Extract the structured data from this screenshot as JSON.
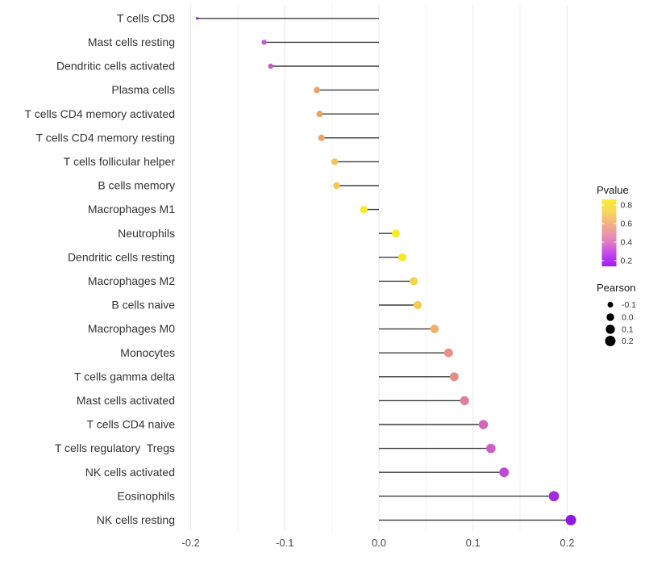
{
  "chart_data": {
    "type": "lollipop",
    "orientation": "horizontal",
    "title": "",
    "xlabel": "",
    "ylabel": "",
    "x_axis": {
      "tick_values": [
        -0.2,
        -0.1,
        0.0,
        0.1,
        0.2
      ],
      "tick_labels": [
        "-0.2",
        "-0.1",
        "0.0",
        "0.1",
        "0.2"
      ],
      "minor_step": 0.05,
      "range": [
        -0.213,
        0.224
      ],
      "grid": true
    },
    "rows": [
      {
        "label": "T cells CD8",
        "pearson": -0.193,
        "pvalue_approx": 0.05,
        "color": "#7c27c8"
      },
      {
        "label": "Mast cells resting",
        "pearson": -0.122,
        "pvalue_approx": 0.33,
        "color": "#c75bc8"
      },
      {
        "label": "Dendritic cells activated",
        "pearson": -0.115,
        "pvalue_approx": 0.34,
        "color": "#c659c2"
      },
      {
        "label": "Plasma cells",
        "pearson": -0.066,
        "pvalue_approx": 0.62,
        "color": "#eda364"
      },
      {
        "label": "T cells CD4 memory activated",
        "pearson": -0.063,
        "pvalue_approx": 0.62,
        "color": "#eda364"
      },
      {
        "label": "T cells CD4 memory resting",
        "pearson": -0.061,
        "pvalue_approx": 0.61,
        "color": "#eca268"
      },
      {
        "label": "T cells follicular helper",
        "pearson": -0.047,
        "pvalue_approx": 0.72,
        "color": "#f3c64f"
      },
      {
        "label": "B cells memory",
        "pearson": -0.045,
        "pvalue_approx": 0.73,
        "color": "#f4c84d"
      },
      {
        "label": "Macrophages M1",
        "pearson": -0.016,
        "pvalue_approx": 0.84,
        "color": "#f8ea20"
      },
      {
        "label": "Neutrophils",
        "pearson": 0.018,
        "pvalue_approx": 0.86,
        "color": "#f9ec1a"
      },
      {
        "label": "Dendritic cells resting",
        "pearson": 0.025,
        "pvalue_approx": 0.83,
        "color": "#f8e926"
      },
      {
        "label": "Macrophages M2",
        "pearson": 0.037,
        "pvalue_approx": 0.74,
        "color": "#f4d14e"
      },
      {
        "label": "B cells naive",
        "pearson": 0.041,
        "pvalue_approx": 0.72,
        "color": "#f3cc50"
      },
      {
        "label": "Macrophages M0",
        "pearson": 0.059,
        "pvalue_approx": 0.63,
        "color": "#efb266"
      },
      {
        "label": "Monocytes",
        "pearson": 0.074,
        "pvalue_approx": 0.52,
        "color": "#e89086"
      },
      {
        "label": "T cells gamma delta",
        "pearson": 0.08,
        "pvalue_approx": 0.5,
        "color": "#e28d8c"
      },
      {
        "label": "Mast cells activated",
        "pearson": 0.091,
        "pvalue_approx": 0.44,
        "color": "#dd7fa0"
      },
      {
        "label": "T cells CD4 naive",
        "pearson": 0.111,
        "pvalue_approx": 0.36,
        "color": "#d169b6"
      },
      {
        "label": "T cells regulatory  Tregs",
        "pearson": 0.119,
        "pvalue_approx": 0.32,
        "color": "#cb5fc3"
      },
      {
        "label": "NK cells activated",
        "pearson": 0.133,
        "pvalue_approx": 0.26,
        "color": "#bd49d6"
      },
      {
        "label": "Eosinophils",
        "pearson": 0.186,
        "pvalue_approx": 0.12,
        "color": "#9f2be2"
      },
      {
        "label": "NK cells resting",
        "pearson": 0.204,
        "pvalue_approx": 0.09,
        "color": "#9016e8"
      }
    ],
    "legends": {
      "pvalue": {
        "title": "Pvalue",
        "tick_labels": [
          "0.8",
          "0.6",
          "0.4",
          "0.2"
        ],
        "tick_values": [
          0.8,
          0.6,
          0.4,
          0.2
        ],
        "gradient_top_to_bottom": [
          "#fbec33",
          "#f8d95a",
          "#f4b77f",
          "#ec97a7",
          "#dc74ce",
          "#be41ef",
          "#a01bf5"
        ],
        "domain_top_to_bottom": [
          0.861,
          0.139
        ]
      },
      "pearson": {
        "title": "Pearson",
        "items": [
          {
            "label": "-0.1",
            "value": -0.1
          },
          {
            "label": "0.0",
            "value": 0.0
          },
          {
            "label": "0.1",
            "value": 0.1
          },
          {
            "label": "0.2",
            "value": 0.2
          }
        ],
        "dot_color": "#000000"
      }
    },
    "style": {
      "background": "#ffffff",
      "stem_color": "#3d3d3d",
      "grid_major_color": "#e7e7e7",
      "grid_minor_color": "#f1f1f1",
      "axis_text_color": "#4d4d4d",
      "label_text_color": "#333333"
    }
  }
}
